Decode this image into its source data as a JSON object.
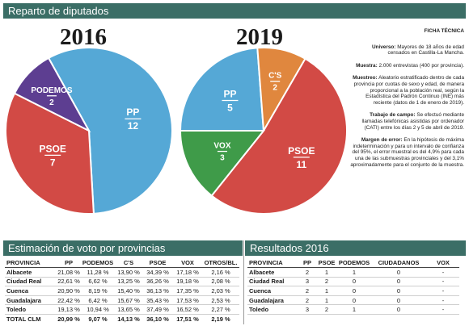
{
  "header": {
    "title": "Reparto de diputados"
  },
  "chart_data": [
    {
      "type": "pie",
      "title": "2016",
      "series": [
        {
          "name": "PP",
          "value": 12,
          "color": "#55a8d6"
        },
        {
          "name": "PSOE",
          "value": 7,
          "color": "#d24a45"
        },
        {
          "name": "PODEMOS",
          "value": 2,
          "color": "#5d3e91"
        }
      ]
    },
    {
      "type": "pie",
      "title": "2019",
      "series": [
        {
          "name": "PP",
          "value": 5,
          "color": "#55a8d6"
        },
        {
          "name": "C'S",
          "value": 2,
          "color": "#e0873e"
        },
        {
          "name": "PSOE",
          "value": 11,
          "color": "#d24a45"
        },
        {
          "name": "VOX",
          "value": 3,
          "color": "#3f9b49"
        }
      ]
    }
  ],
  "ficha": {
    "title": "FICHA TÉCNICA",
    "items": [
      {
        "label": "Universo:",
        "text": "Mayores de 18 años de edad censados en Castilla-La Mancha."
      },
      {
        "label": "Muestra:",
        "text": "2.000 entrevistas (400 por provincia)."
      },
      {
        "label": "Muestreo:",
        "text": "Aleatorio estratificado dentro de cada provincia por cuotas de sexo y edad, de manera proporcional a la población real, según la Estadística del Padrón Continuo (INE) más reciente (datos de 1 de enero de 2019)."
      },
      {
        "label": "Trabajo de campo:",
        "text": "Se efectuó mediante llamadas telefónicas asistidas por ordenador (CATI) entre los días 2 y 5 de abril de 2019."
      },
      {
        "label": "Margen de error:",
        "text": "En la hipótesis de máxima indeterminación y para un intervalo de confianza del 95%, el error muestral es del 4,9% para cada una de las submuestras provinciales y del 3,1% aproximadamente para el conjunto de la muestra."
      }
    ]
  },
  "estimacion": {
    "title": "Estimación de voto por provincias",
    "headers": [
      "PROVINCIA",
      "PP",
      "PODEMOS",
      "C'S",
      "PSOE",
      "VOX",
      "OTROS/BL."
    ],
    "rows": [
      [
        "Albacete",
        "21,08 %",
        "11,28 %",
        "13,90 %",
        "34,39 %",
        "17,18 %",
        "2,16 %"
      ],
      [
        "Ciudad Real",
        "22,61 %",
        "6,62 %",
        "13,25 %",
        "36,26 %",
        "19,18 %",
        "2,08 %"
      ],
      [
        "Cuenca",
        "20,90 %",
        "8,19 %",
        "15,40 %",
        "36,13 %",
        "17,35 %",
        "2,03 %"
      ],
      [
        "Guadalajara",
        "22,42 %",
        "6,42 %",
        "15,67 %",
        "35,43 %",
        "17,53 %",
        "2,53 %"
      ],
      [
        "Toledo",
        "19,13 %",
        "10,94 %",
        "13,65 %",
        "37,49 %",
        "16,52 %",
        "2,27 %"
      ],
      [
        "TOTAL CLM",
        "20,99 %",
        "9,07 %",
        "14,13 %",
        "36,10 %",
        "17,51 %",
        "2,19 %"
      ]
    ]
  },
  "resultados": {
    "title": "Resultados 2016",
    "headers": [
      "PROVINCIA",
      "PP",
      "PSOE",
      "PODEMOS",
      "CIUDADANOS",
      "VOX"
    ],
    "rows": [
      [
        "Albacete",
        "2",
        "1",
        "1",
        "0",
        "-"
      ],
      [
        "Ciudad Real",
        "3",
        "2",
        "0",
        "0",
        "-"
      ],
      [
        "Cuenca",
        "2",
        "1",
        "0",
        "0",
        "-"
      ],
      [
        "Guadalajara",
        "2",
        "1",
        "0",
        "0",
        "-"
      ],
      [
        "Toledo",
        "3",
        "2",
        "1",
        "0",
        "-"
      ]
    ]
  }
}
